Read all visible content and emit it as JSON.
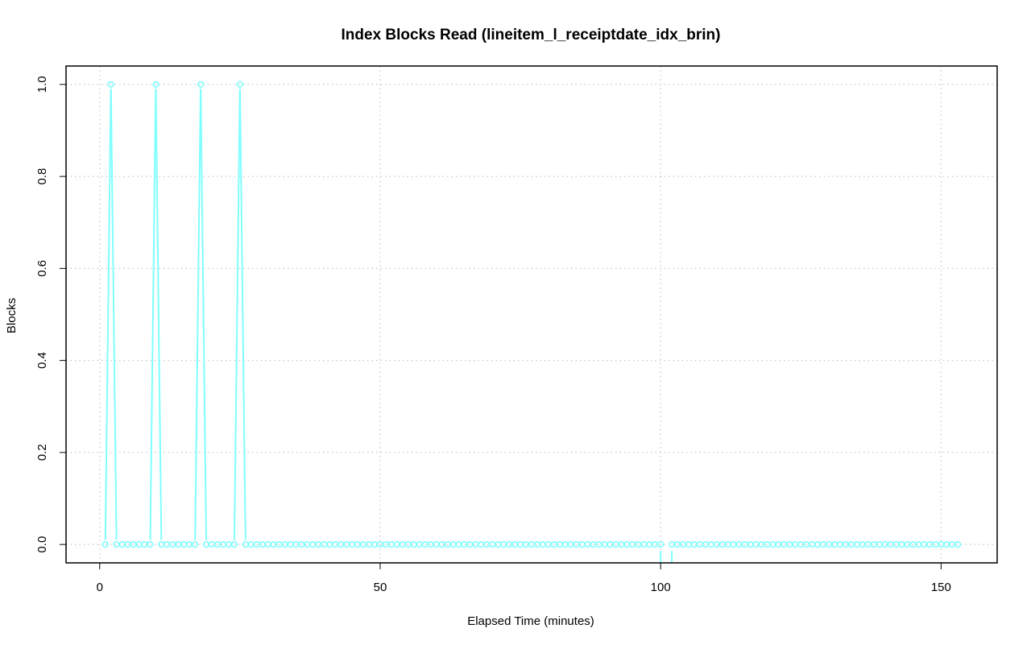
{
  "chart_data": {
    "type": "line",
    "title": "Index Blocks Read (lineitem_l_receiptdate_idx_brin)",
    "xlabel": "Elapsed Time (minutes)",
    "ylabel": "Blocks",
    "xlim": [
      -6,
      160
    ],
    "ylim": [
      -0.04,
      1.04
    ],
    "x_ticks": [
      0,
      50,
      100,
      150
    ],
    "y_ticks": [
      0.0,
      0.2,
      0.4,
      0.6,
      0.8,
      1.0
    ],
    "x_tick_labels": [
      "0",
      "50",
      "100",
      "150"
    ],
    "y_tick_labels": [
      "0.0",
      "0.2",
      "0.4",
      "0.6",
      "0.8",
      "1.0"
    ],
    "grid": true,
    "line_style": "both",
    "color": "#7ffffe",
    "series": [
      {
        "x_range": [
          1,
          153
        ],
        "missing_x": [
          101
        ],
        "value_at": {
          "2": 1,
          "10": 1,
          "18": 1,
          "25": 1
        },
        "default_value": 0
      }
    ]
  }
}
